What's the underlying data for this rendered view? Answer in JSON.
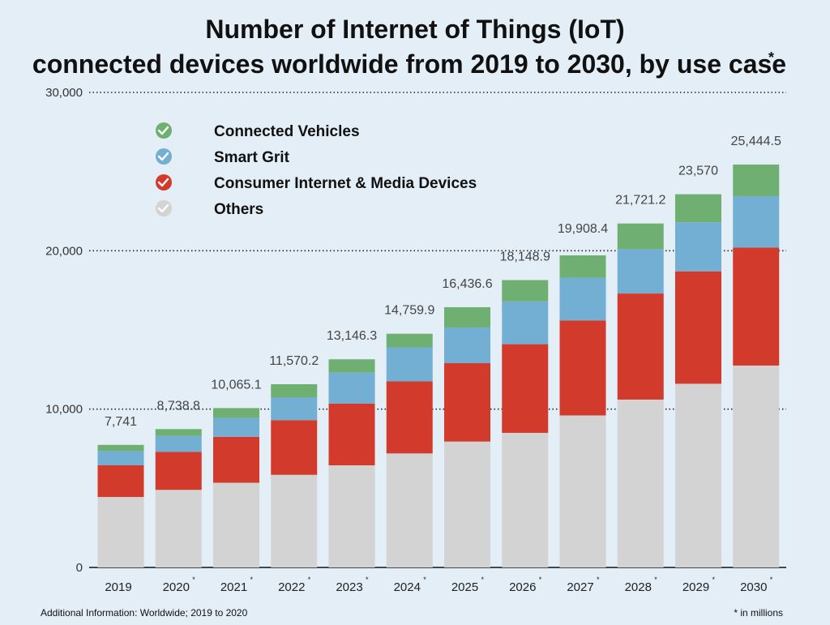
{
  "header": {
    "title_line1": "Number of Internet of Things (IoT)",
    "title_line2": "connected devices worldwide from 2019 to 2030, by use case",
    "title_mark": "*"
  },
  "footer": {
    "source_note": "Additional Information: Worldwide; 2019 to 2020",
    "unit_note": "* in millions"
  },
  "chart_data": {
    "type": "bar",
    "stacked": true,
    "categories": [
      "2019",
      "2020",
      "2021",
      "2022",
      "2023",
      "2024",
      "2025",
      "2026",
      "2027",
      "2028",
      "2029",
      "2030"
    ],
    "category_marks": [
      "",
      "*",
      "*",
      "*",
      "*",
      "*",
      "*",
      "*",
      "*",
      "*",
      "*",
      "*"
    ],
    "total_labels": [
      "7,741",
      "8,738.8",
      "10,065.1",
      "11,570.2",
      "13,146.3",
      "14,759.9",
      "16,436.6",
      "18,148.9",
      "19,908.4",
      "21,721.2",
      "23,570",
      "25,444.5"
    ],
    "totals": [
      7741,
      8738.8,
      10065.1,
      11570.2,
      13146.3,
      14759.9,
      16436.6,
      18148.9,
      19908.4,
      21721.2,
      23570,
      25444.5
    ],
    "series": [
      {
        "name": "Others",
        "color": "#d3d3d3",
        "values": [
          4450,
          4900,
          5350,
          5850,
          6450,
          7200,
          7950,
          8500,
          9600,
          10600,
          11600,
          12750
        ]
      },
      {
        "name": "Consumer Internet & Media Devices",
        "color": "#d23a2c",
        "values": [
          2000,
          2400,
          2900,
          3450,
          3900,
          4550,
          4950,
          5600,
          6000,
          6700,
          7100,
          7450
        ]
      },
      {
        "name": "Smart Grit",
        "color": "#72afd2",
        "values": [
          900,
          1000,
          1200,
          1450,
          1950,
          2150,
          2250,
          2700,
          2700,
          2800,
          3100,
          3250
        ]
      },
      {
        "name": "Connected Vehicles",
        "color": "#6fb072",
        "values": [
          391,
          438.8,
          615.1,
          820.2,
          846.3,
          859.9,
          1286.6,
          1348.9,
          1408.4,
          1621.2,
          1770,
          1994.5
        ]
      }
    ],
    "legend_order": [
      "Connected Vehicles",
      "Smart Grit",
      "Consumer Internet & Media Devices",
      "Others"
    ],
    "yticks": [
      0,
      10000,
      20000,
      30000
    ],
    "ytick_labels": [
      "0",
      "10,000",
      "20,000",
      "30,000"
    ],
    "ylim": [
      0,
      30000
    ],
    "grid": "dotted",
    "legend_position": "top-left"
  }
}
